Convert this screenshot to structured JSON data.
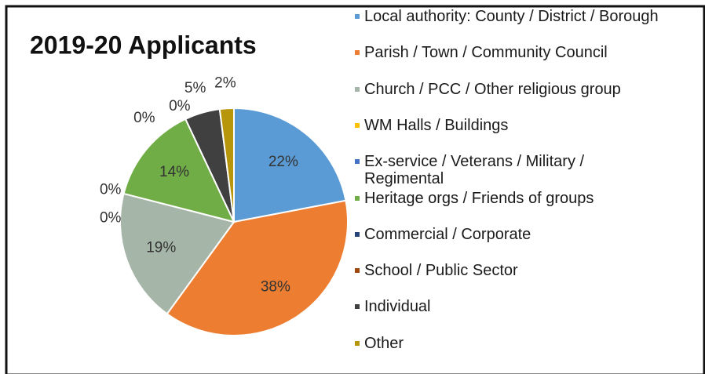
{
  "chart_data": {
    "type": "pie",
    "title": "2019-20 Applicants",
    "categories": [
      "Local authority: County / District / Borough",
      "Parish / Town / Community Council",
      "Church / PCC / Other religious group",
      "WM Halls / Buildings",
      "Ex-service / Veterans / Military / Regimental",
      "Heritage orgs / Friends of groups",
      "Commercial / Corporate",
      "School / Public Sector",
      "Individual",
      "Other"
    ],
    "values": [
      22,
      38,
      19,
      0,
      0,
      14,
      0,
      0,
      5,
      2
    ],
    "value_labels": [
      "22%",
      "38%",
      "19%",
      "0%",
      "0%",
      "14%",
      "0%",
      "0%",
      "5%",
      "2%"
    ],
    "colors": [
      "#5b9bd5",
      "#ed7d31",
      "#a5b5a7",
      "#ffc000",
      "#4472c4",
      "#70ad47",
      "#264478",
      "#9e480e",
      "#404040",
      "#b8960c"
    ],
    "legend": "right"
  }
}
